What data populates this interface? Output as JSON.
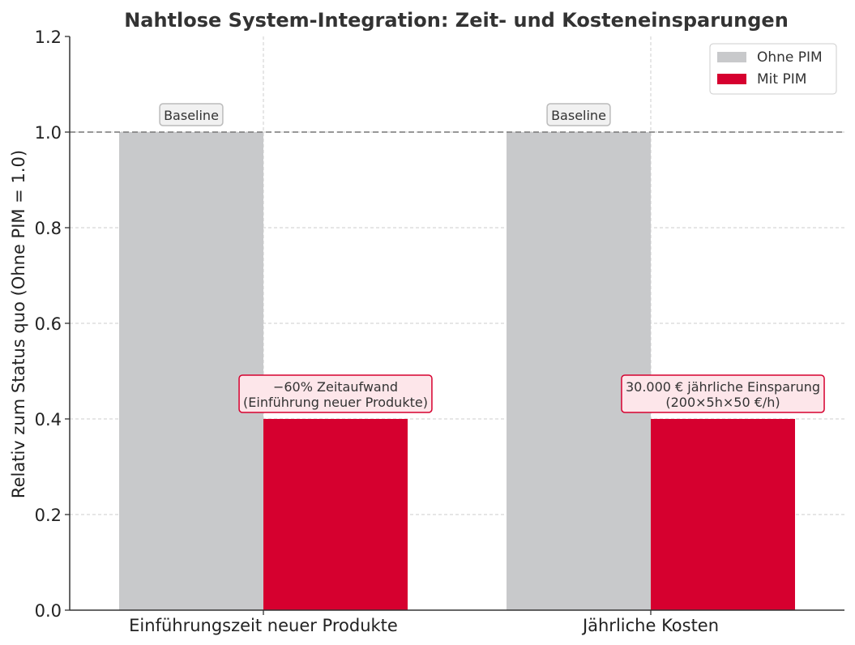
{
  "chart_data": {
    "type": "bar",
    "title": "Nahtlose System-Integration: Zeit- und Kosteneinsparungen",
    "xlabel": "",
    "ylabel": "Relativ zum Status quo (Ohne PIM = 1.0)",
    "categories": [
      "Einführungszeit neuer Produkte",
      "Jährliche Kosten"
    ],
    "series": [
      {
        "name": "Ohne PIM",
        "values": [
          1.0,
          1.0
        ],
        "color": "#c8c9cb"
      },
      {
        "name": "Mit PIM",
        "values": [
          0.4,
          0.4
        ],
        "color": "#d6002f"
      }
    ],
    "ylim": [
      0,
      1.2
    ],
    "yticks": [
      "0.0",
      "0.2",
      "0.4",
      "0.6",
      "0.8",
      "1.0",
      "1.2"
    ],
    "grid": true,
    "legend_position": "top-right",
    "reference_line": {
      "value": 1.0,
      "style": "dashed"
    },
    "annotations": [
      {
        "series": 0,
        "category": 0,
        "lines": [
          "Baseline"
        ]
      },
      {
        "series": 0,
        "category": 1,
        "lines": [
          "Baseline"
        ]
      },
      {
        "series": 1,
        "category": 0,
        "lines": [
          "−60% Zeitaufwand",
          "(Einführung neuer Produkte)"
        ]
      },
      {
        "series": 1,
        "category": 1,
        "lines": [
          "30.000 € jährliche Einsparung",
          "(200×5h×50 €/h)"
        ]
      }
    ]
  }
}
